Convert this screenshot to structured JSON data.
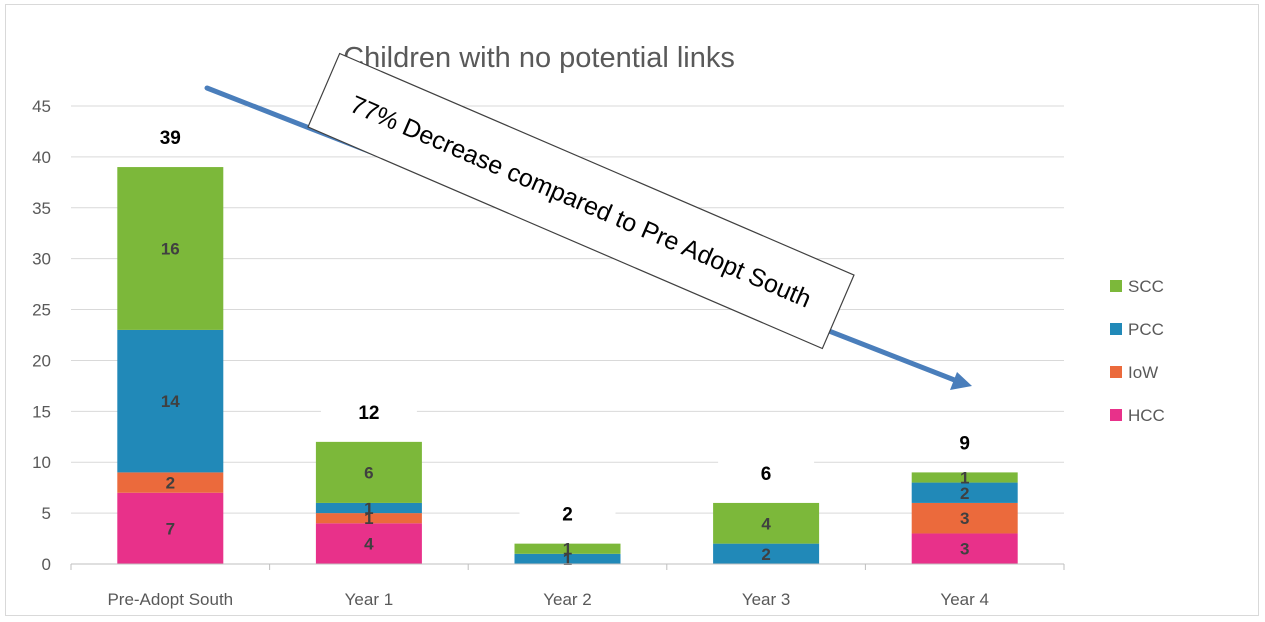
{
  "chart_data": {
    "type": "bar",
    "stacked": true,
    "title": "Children with no potential links",
    "xlabel": "",
    "ylabel": "",
    "categories": [
      "Pre-Adopt South",
      "Year 1",
      "Year 2",
      "Year 3",
      "Year 4"
    ],
    "ylim": [
      0,
      45
    ],
    "yticks": [
      0,
      5,
      10,
      15,
      20,
      25,
      30,
      35,
      40,
      45
    ],
    "grid": true,
    "legend_position": "right",
    "series": [
      {
        "name": "HCC",
        "color": "#E8318A",
        "values": [
          7,
          4,
          0,
          0,
          3
        ]
      },
      {
        "name": "IoW",
        "color": "#EB6A3C",
        "values": [
          2,
          1,
          0,
          0,
          3
        ]
      },
      {
        "name": "PCC",
        "color": "#2189B8",
        "values": [
          14,
          1,
          1,
          2,
          2
        ]
      },
      {
        "name": "SCC",
        "color": "#7CB83A",
        "values": [
          16,
          6,
          1,
          4,
          1
        ]
      }
    ],
    "totals": [
      39,
      12,
      2,
      6,
      9
    ],
    "legend_order": [
      "SCC",
      "PCC",
      "IoW",
      "HCC"
    ],
    "annotation": {
      "text": "77% Decrease compared to Pre Adopt South",
      "arrow_color": "#4A7EBB"
    }
  }
}
